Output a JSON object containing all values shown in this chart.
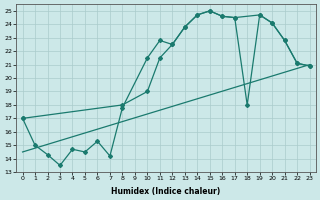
{
  "xlabel": "Humidex (Indice chaleur)",
  "bg_color": "#cce8e8",
  "grid_color": "#aacccc",
  "line_color": "#1a7a6e",
  "xlim": [
    -0.5,
    23.5
  ],
  "ylim": [
    13,
    25.5
  ],
  "xticks": [
    0,
    1,
    2,
    3,
    4,
    5,
    6,
    7,
    8,
    9,
    10,
    11,
    12,
    13,
    14,
    15,
    16,
    17,
    18,
    19,
    20,
    21,
    22,
    23
  ],
  "yticks": [
    13,
    14,
    15,
    16,
    17,
    18,
    19,
    20,
    21,
    22,
    23,
    24,
    25
  ],
  "line1_x": [
    0,
    1,
    2,
    3,
    4,
    5,
    6,
    7,
    8,
    10,
    11,
    12,
    13,
    14,
    15,
    16,
    17,
    18,
    19,
    20,
    21,
    22,
    23
  ],
  "line1_y": [
    17,
    15,
    14.3,
    13.5,
    14.7,
    14.5,
    15.3,
    14.2,
    17.8,
    21.5,
    22.8,
    22.5,
    23.8,
    24.7,
    25.0,
    24.6,
    24.5,
    18.0,
    24.7,
    24.1,
    22.8,
    21.1,
    20.9
  ],
  "line2_x": [
    0,
    8,
    10,
    11,
    12,
    13,
    14,
    15,
    16,
    17,
    19,
    20,
    21,
    22,
    23
  ],
  "line2_y": [
    17,
    18.0,
    19.0,
    21.5,
    22.5,
    23.8,
    24.7,
    25.0,
    24.6,
    24.5,
    24.7,
    24.1,
    22.8,
    21.1,
    20.9
  ],
  "line3_x": [
    0,
    23
  ],
  "line3_y": [
    14.5,
    21.0
  ]
}
